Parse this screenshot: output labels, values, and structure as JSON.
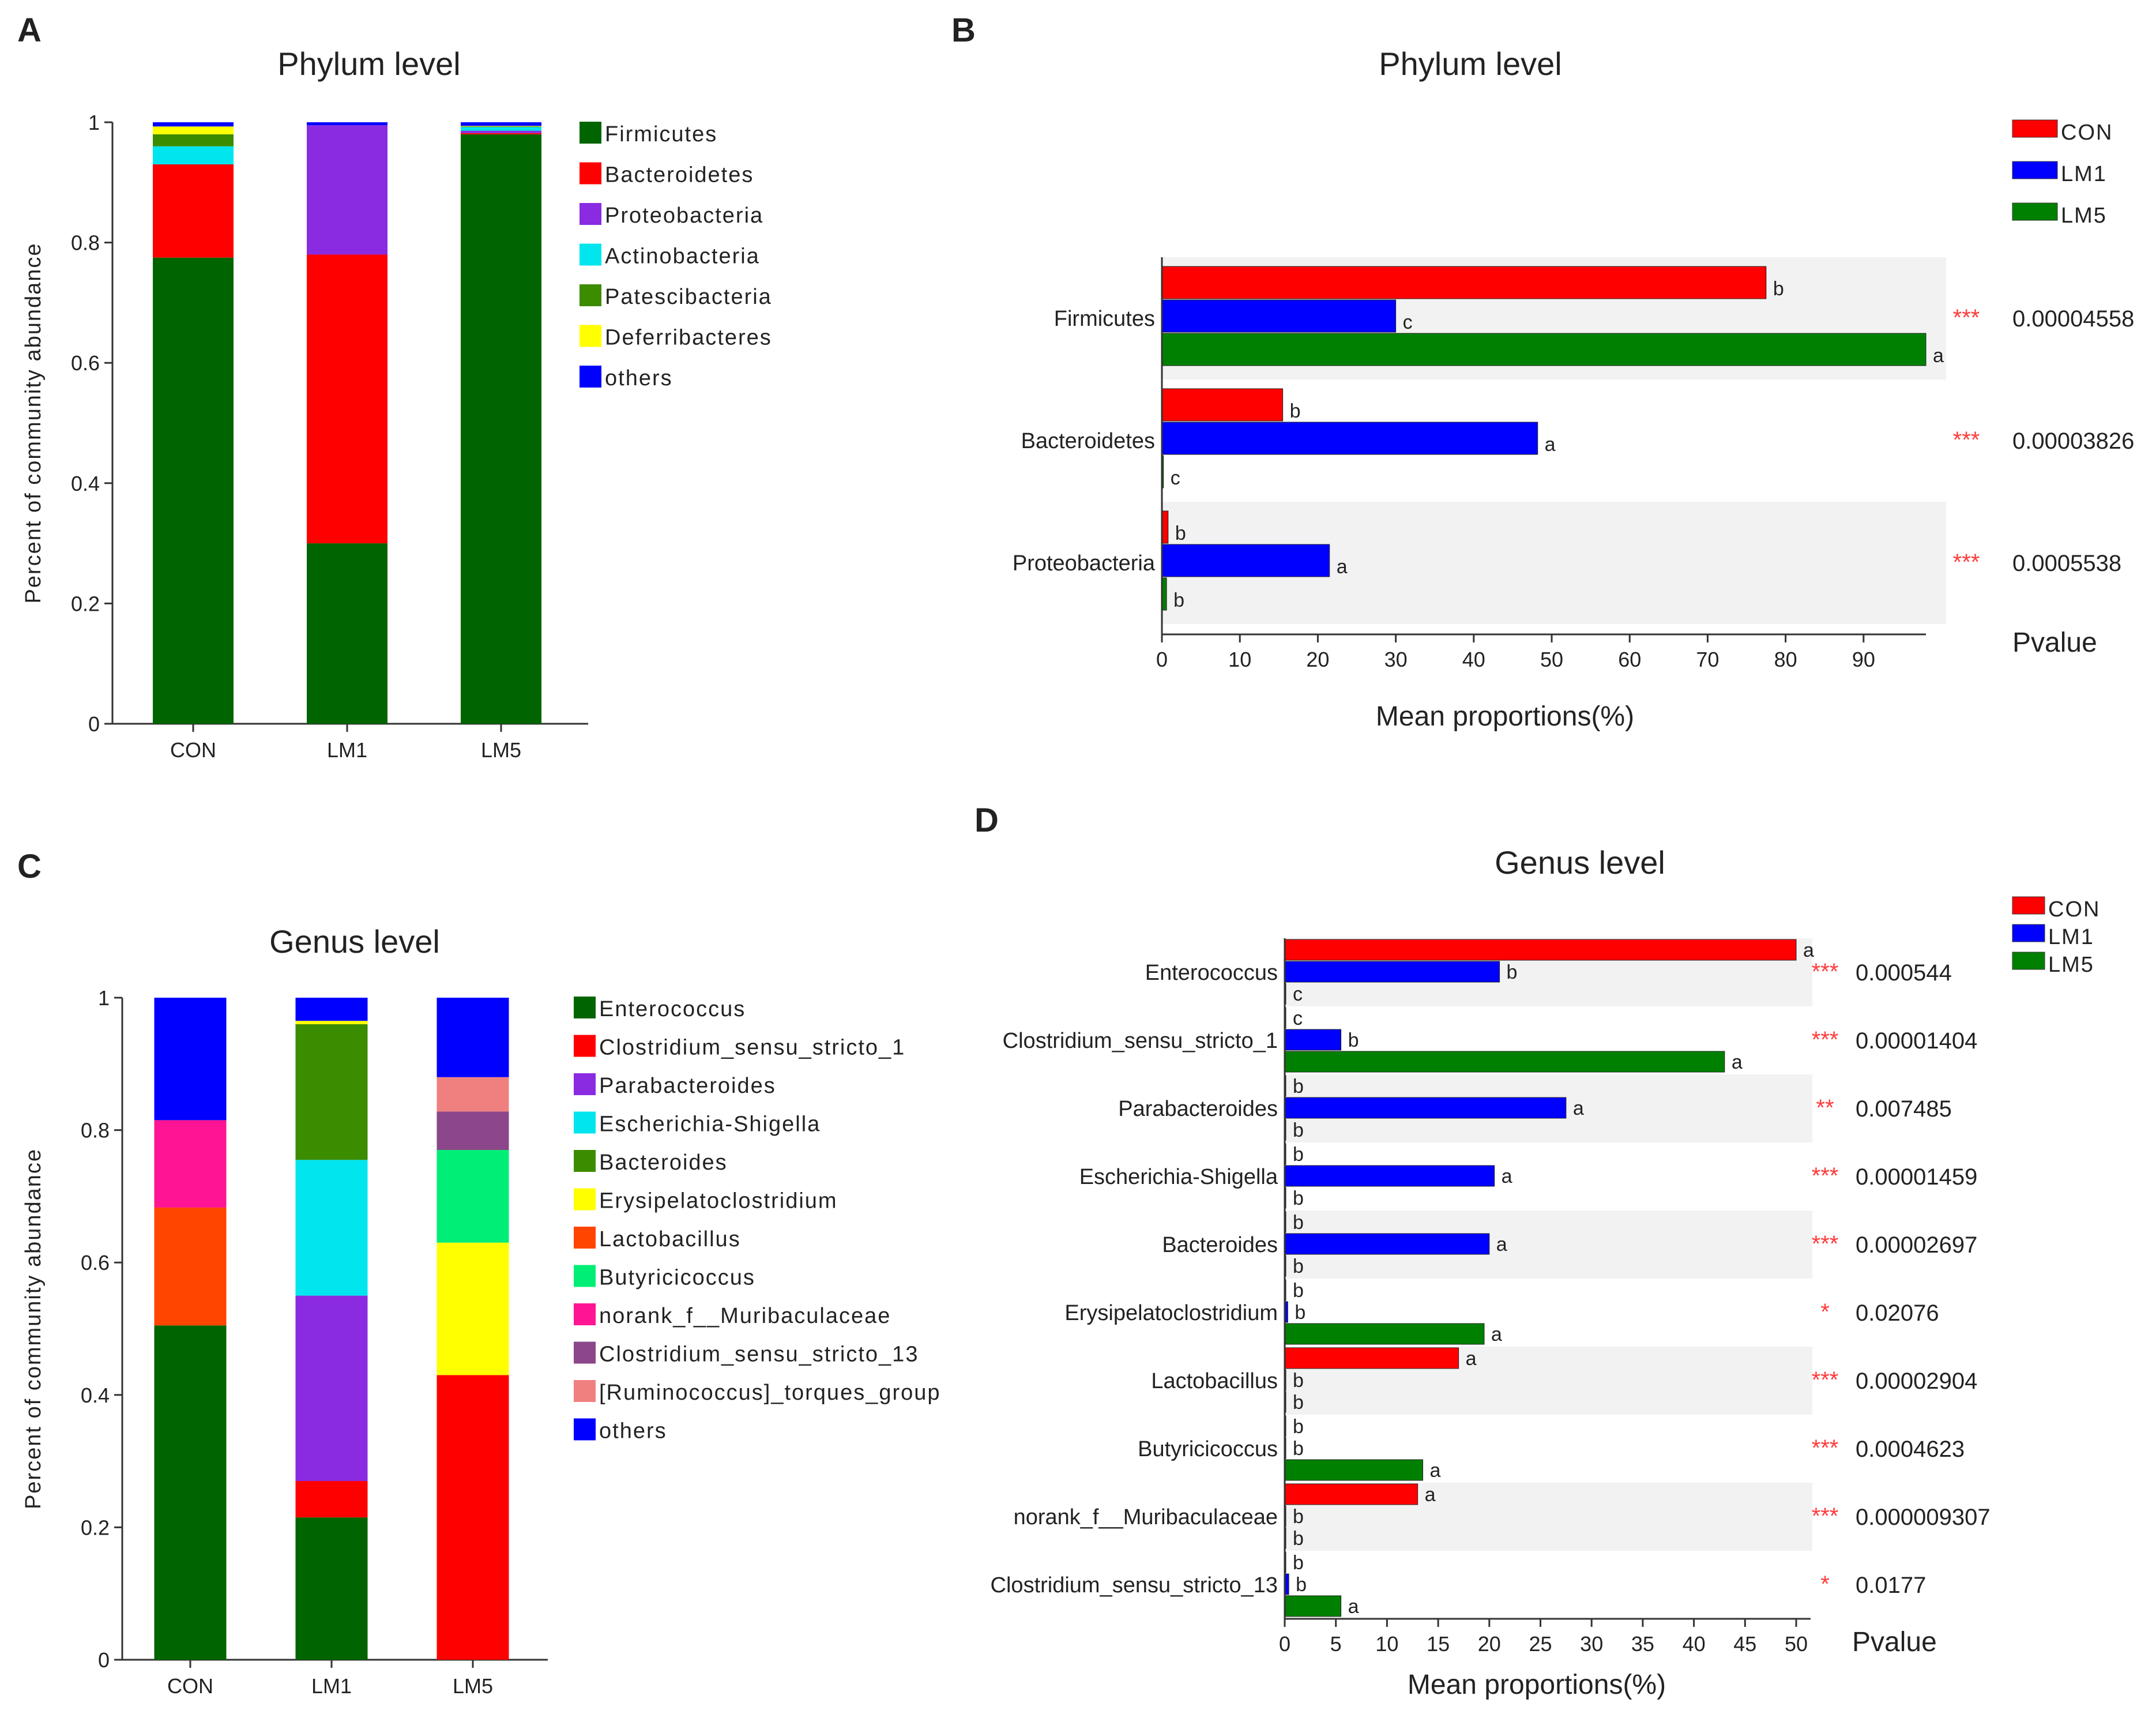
{
  "chart_data": [
    {
      "panel": "A",
      "type": "bar",
      "stacked": true,
      "title": "Phylum level",
      "ylabel": "Percent of community abundance",
      "ylim": [
        0,
        1
      ],
      "yticks": [
        "0",
        "0.2",
        "0.4",
        "0.6",
        "0.8",
        "1"
      ],
      "categories": [
        "CON",
        "LM1",
        "LM5"
      ],
      "series": [
        {
          "name": "Firmicutes",
          "color": "#006400",
          "values": [
            0.775,
            0.3,
            0.98
          ]
        },
        {
          "name": "Bacteroidetes",
          "color": "#ff0000",
          "values": [
            0.155,
            0.48,
            0.002
          ]
        },
        {
          "name": "Proteobacteria",
          "color": "#8a2be2",
          "values": [
            0.0,
            0.215,
            0.004
          ]
        },
        {
          "name": "Actinobacteria",
          "color": "#00e5ee",
          "values": [
            0.03,
            0.0,
            0.006
          ]
        },
        {
          "name": "Patescibacteria",
          "color": "#3c8c00",
          "values": [
            0.02,
            0.0,
            0.001
          ]
        },
        {
          "name": "Deferribacteres",
          "color": "#ffff00",
          "values": [
            0.013,
            0.0,
            0.001
          ]
        },
        {
          "name": "others",
          "color": "#0000ff",
          "values": [
            0.007,
            0.005,
            0.006
          ]
        }
      ]
    },
    {
      "panel": "B",
      "type": "bar",
      "orientation": "horizontal",
      "title": "Phylum level",
      "xlabel": "Mean proportions(%)",
      "xticks": [
        "0",
        "10",
        "20",
        "30",
        "40",
        "50",
        "60",
        "70",
        "80",
        "90"
      ],
      "xlim": [
        0,
        98
      ],
      "pvalue_label": "Pvalue",
      "groups": [
        {
          "name": "CON",
          "color": "#ff0000"
        },
        {
          "name": "LM1",
          "color": "#0000ff"
        },
        {
          "name": "LM5",
          "color": "#008000"
        }
      ],
      "categories": [
        {
          "label": "Firmicutes",
          "values": [
            77.5,
            30.0,
            98.0
          ],
          "letters": [
            "b",
            "c",
            "a"
          ],
          "stars": "***",
          "pvalue": "0.00004558"
        },
        {
          "label": "Bacteroidetes",
          "values": [
            15.5,
            48.2,
            0.2
          ],
          "letters": [
            "b",
            "a",
            "c"
          ],
          "stars": "***",
          "pvalue": "0.00003826"
        },
        {
          "label": "Proteobacteria",
          "values": [
            0.8,
            21.5,
            0.6
          ],
          "letters": [
            "b",
            "a",
            "b"
          ],
          "stars": "***",
          "pvalue": "0.0005538"
        }
      ]
    },
    {
      "panel": "C",
      "type": "bar",
      "stacked": true,
      "title": "Genus level",
      "ylabel": "Percent of community abundance",
      "ylim": [
        0,
        1
      ],
      "yticks": [
        "0",
        "0.2",
        "0.4",
        "0.6",
        "0.8",
        "1"
      ],
      "categories": [
        "CON",
        "LM1",
        "LM5"
      ],
      "series": [
        {
          "name": "Enterococcus",
          "color": "#006400",
          "values": [
            0.505,
            0.215,
            0.0
          ]
        },
        {
          "name": "Clostridium_sensu_stricto_1",
          "color": "#ff0000",
          "values": [
            0.0,
            0.055,
            0.43
          ]
        },
        {
          "name": "Parabacteroides",
          "color": "#8a2be2",
          "values": [
            0.0,
            0.28,
            0.0
          ]
        },
        {
          "name": "Escherichia-Shigella",
          "color": "#00e5ee",
          "values": [
            0.0,
            0.205,
            0.0
          ]
        },
        {
          "name": "Bacteroides",
          "color": "#3c8c00",
          "values": [
            0.0,
            0.205,
            0.0
          ]
        },
        {
          "name": "Erysipelatoclostridium",
          "color": "#ffff00",
          "values": [
            0.0,
            0.005,
            0.2
          ]
        },
        {
          "name": "Lactobacillus",
          "color": "#ff4500",
          "values": [
            0.178,
            0.0,
            0.0
          ]
        },
        {
          "name": "Butyricicoccus",
          "color": "#00ee76",
          "values": [
            0.0,
            0.0,
            0.14
          ]
        },
        {
          "name": "norank_f__Muribaculaceae",
          "color": "#ff1493",
          "values": [
            0.132,
            0.0,
            0.0
          ]
        },
        {
          "name": "Clostridium_sensu_stricto_13",
          "color": "#8b4789",
          "values": [
            0.0,
            0.0,
            0.058
          ]
        },
        {
          "name": "[Ruminococcus]_torques_group",
          "color": "#f08080",
          "values": [
            0.0,
            0.0,
            0.052
          ]
        },
        {
          "name": "others",
          "color": "#0000ff",
          "values": [
            0.185,
            0.035,
            0.12
          ]
        }
      ]
    },
    {
      "panel": "D",
      "type": "bar",
      "orientation": "horizontal",
      "title": "Genus level",
      "xlabel": "Mean proportions(%)",
      "xticks": [
        "0",
        "5",
        "10",
        "15",
        "20",
        "25",
        "30",
        "35",
        "40",
        "45",
        "50"
      ],
      "xlim": [
        0,
        51
      ],
      "pvalue_label": "Pvalue",
      "groups": [
        {
          "name": "CON",
          "color": "#ff0000"
        },
        {
          "name": "LM1",
          "color": "#0000ff"
        },
        {
          "name": "LM5",
          "color": "#008000"
        }
      ],
      "categories": [
        {
          "label": "Enterococcus",
          "values": [
            50.0,
            21.0,
            0.1
          ],
          "letters": [
            "a",
            "b",
            "c"
          ],
          "stars": "***",
          "pvalue": "0.000544"
        },
        {
          "label": "Clostridium_sensu_stricto_1",
          "values": [
            0.1,
            5.5,
            43.0
          ],
          "letters": [
            "c",
            "b",
            "a"
          ],
          "stars": "***",
          "pvalue": "0.00001404"
        },
        {
          "label": "Parabacteroides",
          "values": [
            0.1,
            27.5,
            0.1
          ],
          "letters": [
            "b",
            "a",
            "b"
          ],
          "stars": "**",
          "pvalue": "0.007485"
        },
        {
          "label": "Escherichia-Shigella",
          "values": [
            0.1,
            20.5,
            0.1
          ],
          "letters": [
            "b",
            "a",
            "b"
          ],
          "stars": "***",
          "pvalue": "0.00001459"
        },
        {
          "label": "Bacteroides",
          "values": [
            0.1,
            20.0,
            0.1
          ],
          "letters": [
            "b",
            "a",
            "b"
          ],
          "stars": "***",
          "pvalue": "0.00002697"
        },
        {
          "label": "Erysipelatoclostridium",
          "values": [
            0.1,
            0.3,
            19.5
          ],
          "letters": [
            "b",
            "b",
            "a"
          ],
          "stars": "*",
          "pvalue": "0.02076"
        },
        {
          "label": "Lactobacillus",
          "values": [
            17.0,
            0.1,
            0.1
          ],
          "letters": [
            "a",
            "b",
            "b"
          ],
          "stars": "***",
          "pvalue": "0.00002904"
        },
        {
          "label": "Butyricicoccus",
          "values": [
            0.1,
            0.1,
            13.5
          ],
          "letters": [
            "b",
            "b",
            "a"
          ],
          "stars": "***",
          "pvalue": "0.0004623"
        },
        {
          "label": "norank_f__Muribaculaceae",
          "values": [
            13.0,
            0.1,
            0.1
          ],
          "letters": [
            "a",
            "b",
            "b"
          ],
          "stars": "***",
          "pvalue": "0.000009307"
        },
        {
          "label": "Clostridium_sensu_stricto_13",
          "values": [
            0.1,
            0.4,
            5.5
          ],
          "letters": [
            "b",
            "b",
            "a"
          ],
          "stars": "*",
          "pvalue": "0.0177"
        }
      ]
    }
  ]
}
